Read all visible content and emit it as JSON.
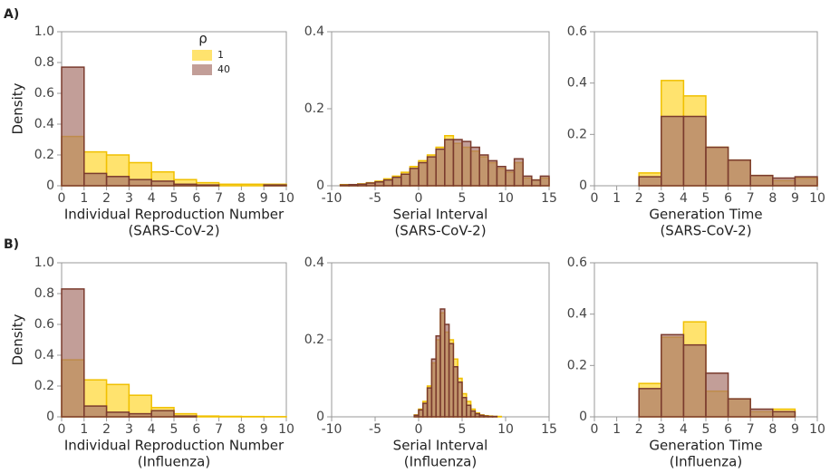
{
  "panel_labels": [
    "A)",
    "B)"
  ],
  "chart_data": [
    {
      "type": "histogram",
      "xlabel": [
        "Individual Reproduction Number",
        "(SARS-CoV-2)"
      ],
      "ylabel": "Density",
      "legend_title": "ρ",
      "legend": "upper center",
      "bins": [
        0,
        1,
        2,
        3,
        4,
        5,
        6,
        7,
        8,
        9,
        10
      ],
      "series": [
        {
          "name": "1",
          "color": "#ffe36e",
          "values": [
            0.32,
            0.22,
            0.2,
            0.15,
            0.09,
            0.04,
            0.02,
            0.01,
            0.01,
            0.01
          ]
        },
        {
          "name": "40",
          "color": "#a8756c",
          "values": [
            0.77,
            0.08,
            0.06,
            0.04,
            0.03,
            0.01,
            0.005,
            0,
            0,
            0.005
          ]
        }
      ],
      "xlim": [
        0,
        10
      ],
      "ylim": [
        0,
        1
      ],
      "xticks": [
        0,
        1,
        2,
        3,
        4,
        5,
        6,
        7,
        8,
        9,
        10
      ],
      "yticks": [
        0,
        0.2,
        0.4,
        0.6,
        0.8,
        {
          "value": 1,
          "label": "1.0"
        }
      ]
    },
    {
      "type": "histogram",
      "xlabel": [
        "Serial Interval",
        "(SARS-CoV-2)"
      ],
      "bins": [
        -9,
        -8,
        -7,
        -6,
        -5,
        -4,
        -3,
        -2,
        -1,
        0,
        1,
        2,
        3,
        4,
        5,
        6,
        7,
        8,
        9,
        10,
        11,
        12,
        13,
        14,
        15
      ],
      "series": [
        {
          "name": "1",
          "color": "#ffe36e",
          "values": [
            0.003,
            0.003,
            0.005,
            0.008,
            0.012,
            0.018,
            0.025,
            0.035,
            0.05,
            0.065,
            0.08,
            0.1,
            0.13,
            0.11,
            0.1,
            0.09,
            0.075,
            0.06,
            0.045,
            0.035,
            0.06,
            0.02,
            0.015,
            0.02
          ]
        },
        {
          "name": "40",
          "color": "#a8756c",
          "values": [
            0.002,
            0.003,
            0.004,
            0.007,
            0.01,
            0.015,
            0.022,
            0.03,
            0.045,
            0.06,
            0.075,
            0.095,
            0.12,
            0.12,
            0.115,
            0.1,
            0.08,
            0.065,
            0.05,
            0.04,
            0.07,
            0.025,
            0.015,
            0.025
          ]
        }
      ],
      "xlim": [
        -10,
        15
      ],
      "ylim": [
        0,
        0.4
      ],
      "xticks": [
        -10,
        -5,
        0,
        5,
        10,
        15
      ],
      "yticks": [
        0,
        0.2,
        0.4
      ]
    },
    {
      "type": "histogram",
      "xlabel": [
        "Generation Time",
        "(SARS-CoV-2)"
      ],
      "bins": [
        0,
        1,
        2,
        3,
        4,
        5,
        6,
        7,
        8,
        9,
        10
      ],
      "series": [
        {
          "name": "1",
          "color": "#ffe36e",
          "values": [
            0,
            0,
            0.05,
            0.41,
            0.35,
            0.15,
            0.1,
            0.04,
            0.02,
            0.03
          ]
        },
        {
          "name": "40",
          "color": "#a8756c",
          "values": [
            0,
            0,
            0.035,
            0.27,
            0.27,
            0.15,
            0.1,
            0.04,
            0.03,
            0.035
          ]
        }
      ],
      "xlim": [
        0,
        10
      ],
      "ylim": [
        0,
        0.6
      ],
      "xticks": [
        0,
        1,
        2,
        3,
        4,
        5,
        6,
        7,
        8,
        9,
        10
      ],
      "yticks": [
        0,
        0.2,
        0.4,
        0.6
      ]
    },
    {
      "type": "histogram",
      "xlabel": [
        "Individual Reproduction Number",
        "(Influenza)"
      ],
      "ylabel": "Density",
      "bins": [
        0,
        1,
        2,
        3,
        4,
        5,
        6,
        7,
        8,
        9,
        10
      ],
      "series": [
        {
          "name": "1",
          "color": "#ffe36e",
          "values": [
            0.37,
            0.24,
            0.21,
            0.14,
            0.06,
            0.02,
            0.005,
            0.003,
            0.002,
            0.001
          ]
        },
        {
          "name": "40",
          "color": "#a8756c",
          "values": [
            0.83,
            0.07,
            0.03,
            0.02,
            0.04,
            0.005,
            0,
            0,
            0,
            0
          ]
        }
      ],
      "xlim": [
        0,
        10
      ],
      "ylim": [
        0,
        1
      ],
      "xticks": [
        0,
        1,
        2,
        3,
        4,
        5,
        6,
        7,
        8,
        9,
        10
      ],
      "yticks": [
        0,
        0.2,
        0.4,
        0.6,
        0.8,
        {
          "value": 1,
          "label": "1.0"
        }
      ]
    },
    {
      "type": "histogram",
      "xlabel": [
        "Serial Interval",
        "(Influenza)"
      ],
      "bins": [
        -0.5,
        0,
        0.5,
        1,
        1.5,
        2,
        2.5,
        3,
        3.5,
        4,
        4.5,
        5,
        5.5,
        6,
        6.5,
        7,
        7.5,
        8,
        8.5,
        9,
        9.5
      ],
      "series": [
        {
          "name": "1",
          "color": "#ffe36e",
          "values": [
            0.005,
            0.02,
            0.04,
            0.08,
            0.14,
            0.2,
            0.27,
            0.22,
            0.2,
            0.15,
            0.1,
            0.06,
            0.04,
            0.02,
            0.01,
            0.005,
            0.003,
            0.002,
            0.001,
            0.001
          ]
        },
        {
          "name": "40",
          "color": "#a8756c",
          "values": [
            0.004,
            0.018,
            0.035,
            0.075,
            0.15,
            0.21,
            0.28,
            0.24,
            0.19,
            0.13,
            0.09,
            0.05,
            0.03,
            0.015,
            0.008,
            0.004,
            0.002,
            0.001,
            0.001,
            0
          ]
        }
      ],
      "xlim": [
        -10,
        15
      ],
      "ylim": [
        0,
        0.4
      ],
      "xticks": [
        -10,
        -5,
        0,
        5,
        10,
        15
      ],
      "yticks": [
        0,
        0.2,
        0.4
      ]
    },
    {
      "type": "histogram",
      "xlabel": [
        "Generation Time",
        "(Influenza)"
      ],
      "bins": [
        0,
        1,
        2,
        3,
        4,
        5,
        6,
        7,
        8,
        9,
        10
      ],
      "series": [
        {
          "name": "1",
          "color": "#ffe36e",
          "values": [
            0,
            0,
            0.13,
            0.31,
            0.37,
            0.1,
            0.07,
            0.02,
            0.03,
            0
          ]
        },
        {
          "name": "40",
          "color": "#a8756c",
          "values": [
            0,
            0,
            0.11,
            0.32,
            0.28,
            0.17,
            0.07,
            0.03,
            0.02,
            0
          ]
        }
      ],
      "xlim": [
        0,
        10
      ],
      "ylim": [
        0,
        0.6
      ],
      "xticks": [
        0,
        1,
        2,
        3,
        4,
        5,
        6,
        7,
        8,
        9,
        10
      ],
      "yticks": [
        0,
        0.2,
        0.4,
        0.6
      ]
    }
  ]
}
